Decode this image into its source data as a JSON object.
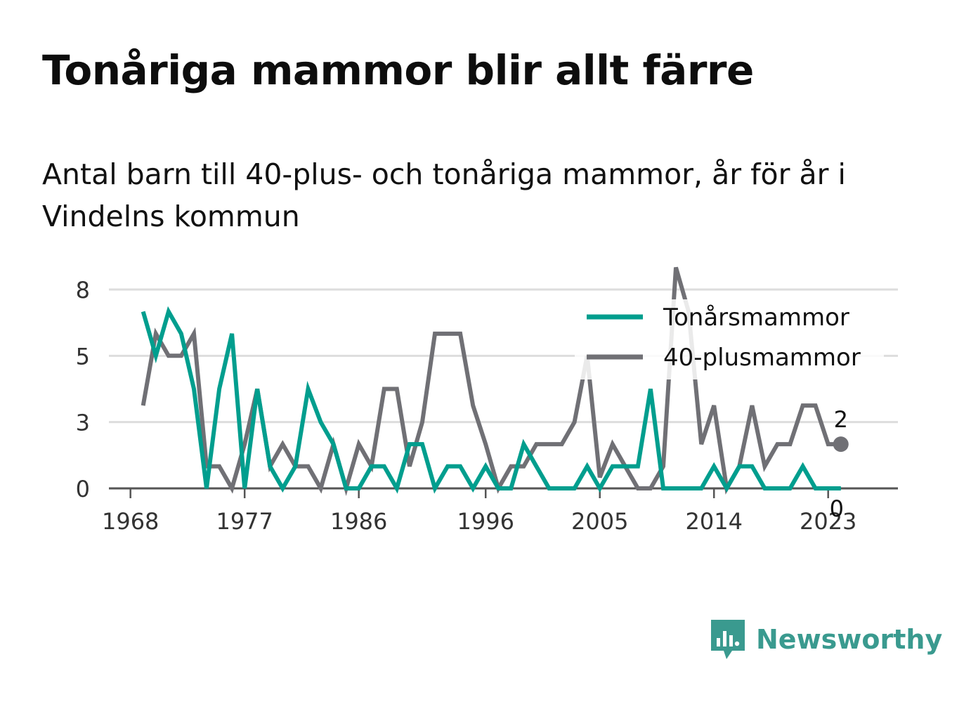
{
  "title": "Tonåriga mammor blir allt färre",
  "subtitle": "Antal barn till 40-plus- och tonåriga mammor, år för år i Vindelns kommun",
  "brand": {
    "name": "Newsworthy"
  },
  "colors": {
    "teen": "#009e8e",
    "plus40": "#707075",
    "grid": "#dddddd",
    "axis": "#555555",
    "text": "#333333"
  },
  "chart_data": {
    "type": "line",
    "x": [
      1969,
      1970,
      1971,
      1972,
      1973,
      1974,
      1975,
      1976,
      1977,
      1978,
      1979,
      1980,
      1981,
      1982,
      1983,
      1984,
      1985,
      1986,
      1987,
      1988,
      1989,
      1990,
      1991,
      1992,
      1993,
      1994,
      1995,
      1996,
      1997,
      1998,
      1999,
      2000,
      2001,
      2002,
      2003,
      2004,
      2005,
      2006,
      2007,
      2008,
      2009,
      2010,
      2011,
      2012,
      2013,
      2014,
      2015,
      2016,
      2017,
      2018,
      2019,
      2020,
      2021,
      2022,
      2023,
      2024
    ],
    "series": [
      {
        "name": "Tonårsmammor",
        "color": "#009e8e",
        "values": [
          7,
          5,
          7,
          6,
          4,
          0,
          4,
          6,
          0,
          4,
          1,
          0,
          1,
          4,
          3,
          2,
          0,
          0,
          1,
          1,
          0,
          2,
          2,
          0,
          1,
          1,
          0,
          1,
          0,
          0,
          2,
          1,
          0,
          0,
          0,
          1,
          0,
          1,
          1,
          1,
          4,
          0,
          0,
          0,
          0,
          1,
          0,
          1,
          1,
          0,
          0,
          0,
          1,
          0,
          0,
          0
        ]
      },
      {
        "name": "40-plusmammor",
        "color": "#707075",
        "values": [
          3.5,
          6,
          5,
          5,
          6,
          1,
          1,
          0,
          2,
          4,
          1,
          2,
          1,
          1,
          0,
          2,
          0,
          2,
          1,
          4,
          4,
          1,
          3,
          6,
          6,
          6,
          3.5,
          2,
          0,
          1,
          1,
          2,
          2,
          2,
          3,
          5,
          0.5,
          2,
          1,
          0,
          0,
          1,
          9,
          7,
          2,
          3.5,
          0,
          1,
          3.5,
          1,
          2,
          2,
          3.5,
          3.5,
          2,
          2
        ]
      }
    ],
    "xticks": [
      1968,
      1977,
      1986,
      1996,
      2005,
      2014,
      2023
    ],
    "xtick_labels": [
      "1968",
      "1977",
      "1986",
      "1996",
      "2005",
      "2014",
      "2023"
    ],
    "yticks": [
      0,
      3,
      5,
      8
    ],
    "ytick_labels": [
      "0",
      "3",
      "5",
      "8"
    ],
    "ylim": [
      0,
      9
    ],
    "xlim": [
      1966.3,
      2028.5
    ],
    "end_labels": {
      "plus40": "2",
      "teen": "0"
    },
    "legend": {
      "placement": "top-right"
    },
    "grid": true
  }
}
